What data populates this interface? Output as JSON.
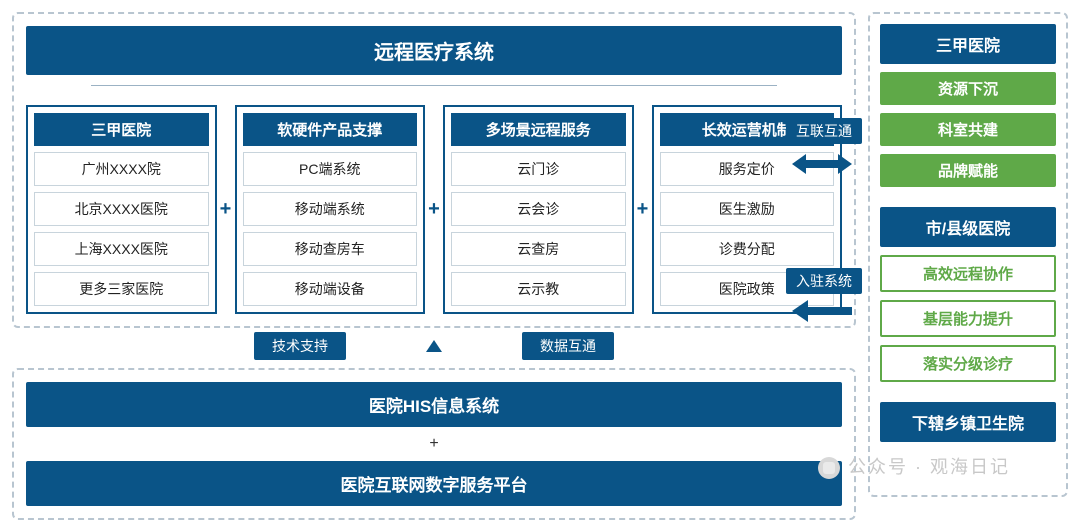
{
  "colors": {
    "primary": "#0a5487",
    "green": "#5fa948",
    "dash": "#b8c5d0",
    "item_border": "#c8d4dc",
    "bg": "#ffffff"
  },
  "main": {
    "title": "远程医疗系统",
    "columns": [
      {
        "header": "三甲医院",
        "items": [
          "广州XXXX院",
          "北京XXXX医院",
          "上海XXXX医院",
          "更多三家医院"
        ]
      },
      {
        "header": "软硬件产品支撑",
        "items": [
          "PC端系统",
          "移动端系统",
          "移动查房车",
          "移动端设备"
        ]
      },
      {
        "header": "多场景远程服务",
        "items": [
          "云门诊",
          "云会诊",
          "云查房",
          "云示教"
        ]
      },
      {
        "header": "长效运营机制",
        "items": [
          "服务定价",
          "医生激励",
          "诊费分配",
          "医院政策"
        ]
      }
    ],
    "connectors": {
      "left": "技术支持",
      "right": "数据互通"
    },
    "bottom_bars": [
      "医院HIS信息系统",
      "医院互联网数字服务平台"
    ],
    "bottom_joiner": "+"
  },
  "bridge": {
    "top_label": "互联互通",
    "bottom_label": "入驻系统"
  },
  "right": {
    "sections": [
      {
        "type": "dark",
        "text": "三甲医院"
      },
      {
        "type": "green_solid",
        "text": "资源下沉"
      },
      {
        "type": "green_solid",
        "text": "科室共建"
      },
      {
        "type": "green_solid",
        "text": "品牌赋能"
      },
      {
        "type": "gap"
      },
      {
        "type": "dark",
        "text": "市/县级医院"
      },
      {
        "type": "green_outline",
        "text": "高效远程协作"
      },
      {
        "type": "green_outline",
        "text": "基层能力提升"
      },
      {
        "type": "green_outline",
        "text": "落实分级诊疗"
      },
      {
        "type": "gap"
      },
      {
        "type": "dark",
        "text": "下辖乡镇卫生院"
      }
    ]
  },
  "watermark": "公众号 · 观海日记"
}
